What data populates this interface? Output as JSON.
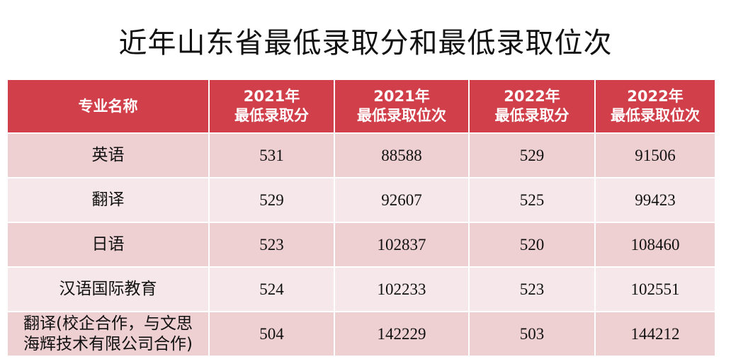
{
  "title": "近年山东省最低录取分和最低录取位次",
  "table": {
    "headers": [
      [
        "专业名称"
      ],
      [
        "2021年",
        "最低录取分"
      ],
      [
        "2021年",
        "最低录取位次"
      ],
      [
        "2022年",
        "最低录取分"
      ],
      [
        "2022年",
        "最低录取位次"
      ]
    ],
    "rows": [
      {
        "name": [
          "英语"
        ],
        "cells": [
          "531",
          "88588",
          "529",
          "91506"
        ]
      },
      {
        "name": [
          "翻译"
        ],
        "cells": [
          "529",
          "92607",
          "525",
          "99423"
        ]
      },
      {
        "name": [
          "日语"
        ],
        "cells": [
          "523",
          "102837",
          "520",
          "108460"
        ]
      },
      {
        "name": [
          "汉语国际教育"
        ],
        "cells": [
          "524",
          "102233",
          "523",
          "102551"
        ]
      },
      {
        "name": [
          "翻译(校企合作，与文思",
          "海辉技术有限公司合作)"
        ],
        "cells": [
          "504",
          "142229",
          "503",
          "144212"
        ]
      }
    ]
  }
}
